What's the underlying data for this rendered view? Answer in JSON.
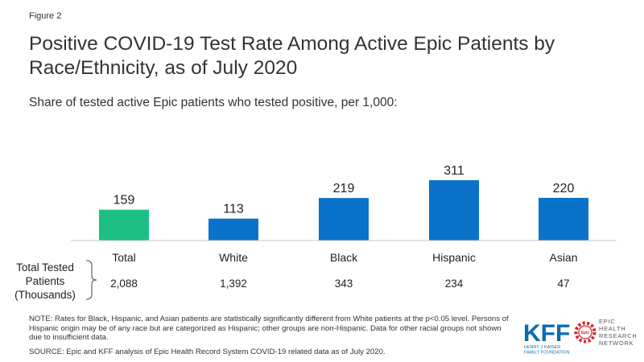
{
  "figure_label": "Figure 2",
  "chart_data": {
    "type": "bar",
    "title": "Positive COVID-19 Test Rate Among Active Epic Patients by Race/Ethnicity, as of July 2020",
    "subtitle": "Share of tested active Epic patients who tested positive, per 1,000:",
    "categories": [
      "Total",
      "White",
      "Black",
      "Hispanic",
      "Asian"
    ],
    "values": [
      159,
      113,
      219,
      311,
      220
    ],
    "value_labels": [
      "159",
      "113",
      "219",
      "311",
      "220"
    ],
    "colors": [
      "#1dbf84",
      "#0a72c9",
      "#0a72c9",
      "#0a72c9",
      "#0a72c9"
    ],
    "ylim": [
      0,
      311
    ],
    "xlabel": "",
    "ylabel": "",
    "grid": false,
    "legend": "none",
    "total_tested": {
      "label_lines": [
        "Total Tested",
        "Patients",
        "(Thousands)"
      ],
      "values": [
        "2,088",
        "1,392",
        "343",
        "234",
        "47"
      ]
    }
  },
  "note": "NOTE: Rates for Black, Hispanic, and Asian patients are statistically significantly different from White patients at the p<0.05 level. Persons of Hispanic origin may be of any race but are categorized as Hispanic; other groups are non-Hispanic. Data for other racial groups not shown due to insufficient data.",
  "source": "SOURCE: Epic and KFF analysis of Epic Health Record System COVID-19 related data as of July 2020.",
  "logos": {
    "kff": "KFF",
    "kff_sub1": "HENRY J KAISER",
    "kff_sub2": "FAMILY FOUNDATION",
    "epic_lines": [
      "EPIC",
      "HEALTH",
      "RESEARCH",
      "NETWORK"
    ]
  }
}
